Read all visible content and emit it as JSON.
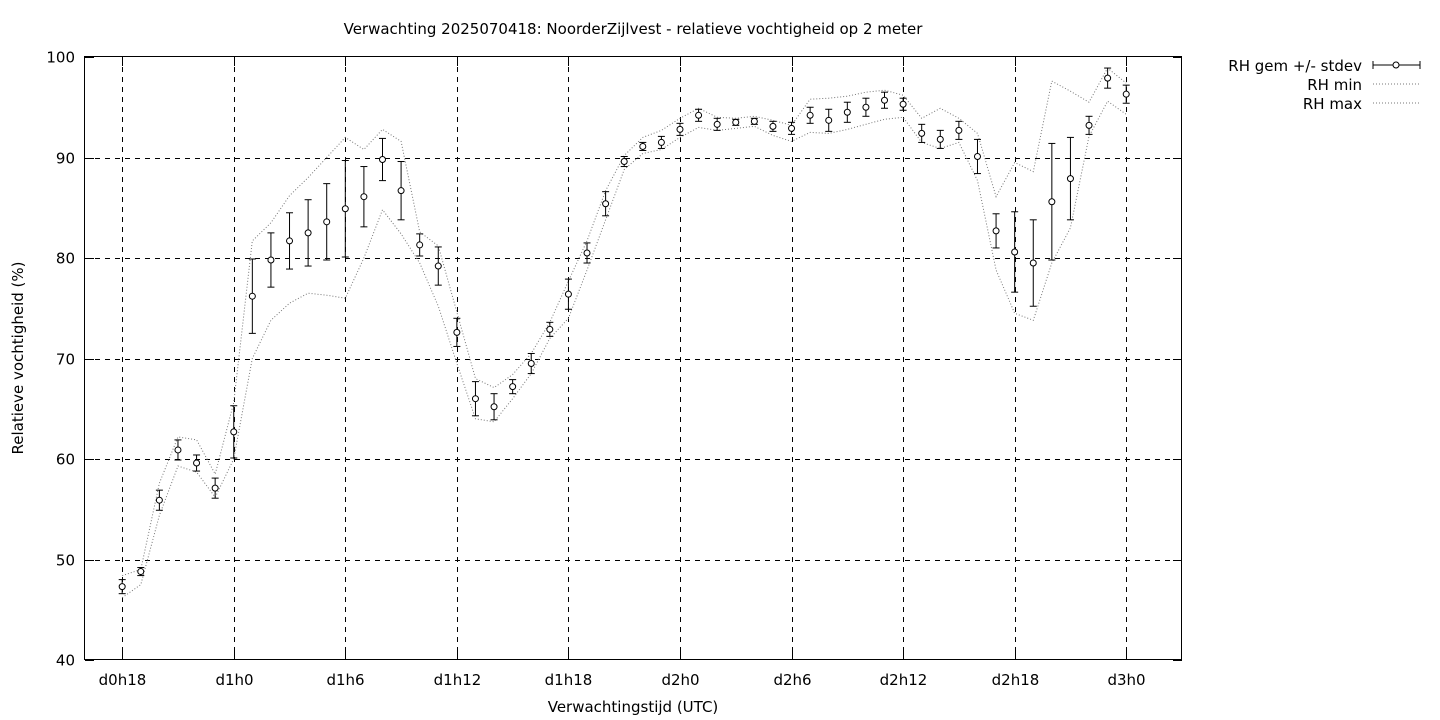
{
  "chart_data": {
    "type": "line",
    "title": "Verwachting 2025070418: NoorderZijlvest - relatieve vochtigheid op 2 meter",
    "xlabel": "Verwachtingstijd (UTC)",
    "ylabel": "Relatieve vochtigheid (%)",
    "ylim": [
      40,
      100
    ],
    "yticks": [
      40,
      50,
      60,
      70,
      80,
      90,
      100
    ],
    "xticks": [
      {
        "h": 18,
        "label": "d0h18"
      },
      {
        "h": 24,
        "label": "d1h0"
      },
      {
        "h": 30,
        "label": "d1h6"
      },
      {
        "h": 36,
        "label": "d1h12"
      },
      {
        "h": 42,
        "label": "d1h18"
      },
      {
        "h": 48,
        "label": "d2h0"
      },
      {
        "h": 54,
        "label": "d2h6"
      },
      {
        "h": 60,
        "label": "d2h12"
      },
      {
        "h": 66,
        "label": "d2h18"
      },
      {
        "h": 72,
        "label": "d3h0"
      }
    ],
    "grid": true,
    "legend_position": "outside-top-right",
    "x": [
      18,
      19,
      20,
      21,
      22,
      23,
      24,
      25,
      26,
      27,
      28,
      29,
      30,
      31,
      32,
      33,
      34,
      35,
      36,
      37,
      38,
      39,
      40,
      41,
      42,
      43,
      44,
      45,
      46,
      47,
      48,
      49,
      50,
      51,
      52,
      53,
      54,
      55,
      56,
      57,
      58,
      59,
      60,
      61,
      62,
      63,
      64,
      65,
      66,
      67,
      68,
      69,
      70,
      71,
      72
    ],
    "series": [
      {
        "name": "RH gem +/- stdev",
        "style": "errorbars",
        "values": [
          47.3,
          48.8,
          55.9,
          60.9,
          59.6,
          57.1,
          62.7,
          76.2,
          79.8,
          81.7,
          82.5,
          83.6,
          84.9,
          86.1,
          89.8,
          86.7,
          81.3,
          79.2,
          72.6,
          66.0,
          65.2,
          67.2,
          69.5,
          72.9,
          76.4,
          80.5,
          85.4,
          89.6,
          91.1,
          91.5,
          92.8,
          94.2,
          93.3,
          93.5,
          93.6,
          93.1,
          92.9,
          94.2,
          93.7,
          94.5,
          95.0,
          95.7,
          95.3,
          92.4,
          91.8,
          92.7,
          90.1,
          82.7,
          80.6,
          79.5,
          85.6,
          87.9,
          93.2,
          97.9,
          96.3
        ],
        "stdev": [
          0.7,
          0.4,
          1.0,
          1.0,
          0.8,
          1.0,
          2.6,
          3.7,
          2.7,
          2.8,
          3.3,
          3.8,
          4.8,
          3.0,
          2.1,
          2.9,
          1.1,
          1.9,
          1.4,
          1.7,
          1.3,
          0.7,
          1.0,
          0.7,
          1.5,
          1.0,
          1.2,
          0.5,
          0.4,
          0.6,
          0.6,
          0.6,
          0.6,
          0.3,
          0.3,
          0.5,
          0.6,
          0.8,
          1.1,
          1.0,
          0.9,
          0.8,
          0.6,
          0.9,
          0.9,
          0.9,
          1.7,
          1.7,
          4.0,
          4.3,
          5.8,
          4.1,
          0.9,
          1.0,
          0.9
        ]
      },
      {
        "name": "RH min",
        "style": "dotted",
        "values": [
          46.2,
          47.5,
          54.4,
          59.3,
          58.7,
          56.2,
          60.0,
          70.0,
          73.8,
          75.5,
          76.5,
          76.3,
          76.0,
          80.0,
          84.8,
          82.4,
          79.5,
          75.2,
          69.5,
          64.0,
          63.7,
          66.0,
          68.5,
          72.0,
          74.0,
          78.8,
          83.8,
          88.8,
          90.4,
          90.8,
          92.0,
          93.0,
          92.7,
          92.9,
          93.1,
          92.2,
          91.6,
          92.5,
          92.4,
          92.8,
          93.3,
          93.8,
          94.0,
          91.5,
          90.9,
          91.5,
          87.7,
          78.8,
          74.5,
          73.8,
          79.5,
          83.0,
          92.1,
          95.6,
          94.3
        ]
      },
      {
        "name": "RH max",
        "style": "dotted",
        "values": [
          48.4,
          49.0,
          57.6,
          62.2,
          61.9,
          58.5,
          65.6,
          81.7,
          83.5,
          86.2,
          88.0,
          90.0,
          92.0,
          90.8,
          92.8,
          91.6,
          82.6,
          81.2,
          74.6,
          68.0,
          67.1,
          68.4,
          70.5,
          73.6,
          77.7,
          81.7,
          86.7,
          90.2,
          92.0,
          92.7,
          93.9,
          94.9,
          94.0,
          93.9,
          94.1,
          93.7,
          93.2,
          95.8,
          95.9,
          96.1,
          96.5,
          96.7,
          96.2,
          93.9,
          94.9,
          93.9,
          92.4,
          86.1,
          89.5,
          88.6,
          97.6,
          96.6,
          95.5,
          98.9,
          97.4
        ]
      }
    ]
  }
}
